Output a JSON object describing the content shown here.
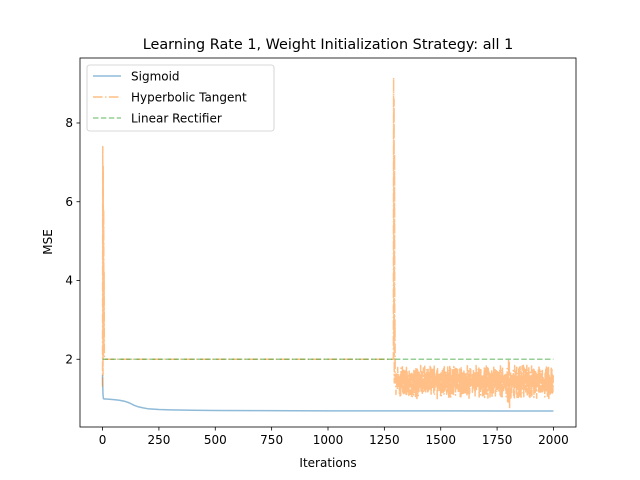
{
  "chart_data": {
    "type": "line",
    "title": "Learning Rate 1, Weight Initialization Strategy: all 1",
    "xlabel": "Iterations",
    "ylabel": "MSE",
    "xlim": [
      -100,
      2100
    ],
    "ylim": [
      0.28,
      9.65
    ],
    "xticks": [
      0,
      250,
      500,
      750,
      1000,
      1250,
      1500,
      1750,
      2000
    ],
    "yticks": [
      2,
      4,
      6,
      8
    ],
    "grid": false,
    "legend_position": "top-left",
    "series": [
      {
        "name": "Sigmoid",
        "color": "#1f77b4",
        "linestyle": "solid",
        "x": [
          0,
          1,
          2,
          4,
          8,
          15,
          30,
          50,
          75,
          100,
          120,
          140,
          160,
          180,
          200,
          250,
          300,
          400,
          500,
          700,
          1000,
          1500,
          2000
        ],
        "y": [
          1.6,
          1.3,
          1.1,
          1.0,
          0.99,
          0.99,
          0.985,
          0.975,
          0.96,
          0.93,
          0.89,
          0.83,
          0.79,
          0.765,
          0.745,
          0.725,
          0.715,
          0.705,
          0.7,
          0.695,
          0.69,
          0.688,
          0.685
        ]
      },
      {
        "name": "Hyperbolic Tangent",
        "color": "#ff7f0e",
        "linestyle": "dashdot",
        "segments": [
          {
            "x": [
              0,
              1,
              2,
              3,
              4,
              5,
              6,
              7,
              8,
              10,
              15,
              1290,
              1291,
              1292,
              1293,
              1294,
              1295,
              1296,
              1297,
              1298,
              1300
            ],
            "y": [
              1.3,
              7.4,
              1.6,
              6.9,
              2.1,
              5.8,
              2.4,
              4.2,
              2.0,
              2.0,
              2.0,
              2.0,
              9.15,
              2.3,
              8.6,
              1.4,
              7.2,
              2.5,
              3.0,
              1.4,
              1.5
            ]
          }
        ],
        "noise_band": {
          "x_start": 1300,
          "x_end": 2000,
          "upper": 1.85,
          "lower": 1.0,
          "spike_x": 1800,
          "spike_min": 0.72,
          "spike_max": 2.0
        }
      },
      {
        "name": "Linear Rectifier",
        "color": "#2ca02c",
        "linestyle": "dashed",
        "x": [
          0,
          2000
        ],
        "y": [
          2.0,
          2.0
        ]
      }
    ]
  }
}
